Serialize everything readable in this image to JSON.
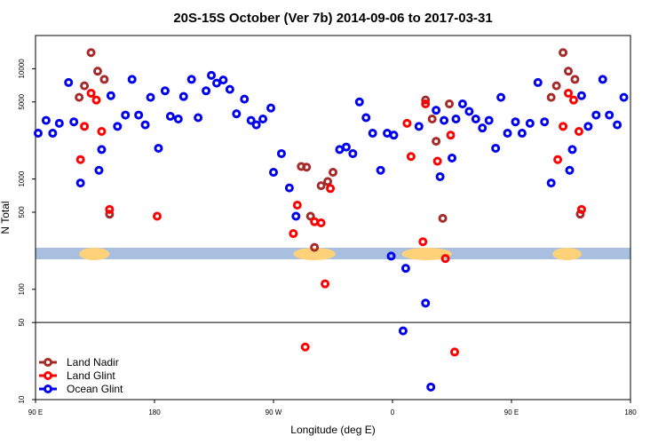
{
  "chart_data": {
    "type": "scatter",
    "title": "20S-15S October (Ver 7b)   2014-09-06 to 2017-03-31",
    "xlabel": "Longitude (deg E)",
    "ylabel": "N Total",
    "y_scale": "log",
    "xlim": [
      90,
      540
    ],
    "ylim": [
      10,
      20000
    ],
    "x_ticks": [
      {
        "value": 90,
        "label": "90 E"
      },
      {
        "value": 180,
        "label": "180"
      },
      {
        "value": 270,
        "label": "90 W"
      },
      {
        "value": 360,
        "label": "0"
      },
      {
        "value": 450,
        "label": "90 E"
      },
      {
        "value": 540,
        "label": "180"
      }
    ],
    "y_ticks": [
      {
        "value": 10,
        "label": "10"
      },
      {
        "value": 50,
        "label": "50"
      },
      {
        "value": 100,
        "label": "100"
      },
      {
        "value": 500,
        "label": "500"
      },
      {
        "value": 1000,
        "label": "1000"
      },
      {
        "value": 5000,
        "label": "5000"
      },
      {
        "value": 10000,
        "label": "10000"
      }
    ],
    "reference_line": {
      "y": 50
    },
    "legend_position": "bottom-left",
    "series": [
      {
        "name": "Land Nadir",
        "color": "#a52a2a",
        "points": [
          {
            "x": 123,
            "y": 5500
          },
          {
            "x": 127,
            "y": 7000
          },
          {
            "x": 132,
            "y": 14000
          },
          {
            "x": 137,
            "y": 9500
          },
          {
            "x": 142,
            "y": 8000
          },
          {
            "x": 146,
            "y": 480
          },
          {
            "x": 291,
            "y": 1300
          },
          {
            "x": 295,
            "y": 1280
          },
          {
            "x": 298,
            "y": 460
          },
          {
            "x": 301,
            "y": 240
          },
          {
            "x": 306,
            "y": 870
          },
          {
            "x": 311,
            "y": 950
          },
          {
            "x": 315,
            "y": 1150
          },
          {
            "x": 385,
            "y": 5200
          },
          {
            "x": 390,
            "y": 3500
          },
          {
            "x": 393,
            "y": 2200
          },
          {
            "x": 398,
            "y": 440
          },
          {
            "x": 403,
            "y": 4800
          },
          {
            "x": 480,
            "y": 5500
          },
          {
            "x": 484,
            "y": 7000
          },
          {
            "x": 489,
            "y": 14000
          },
          {
            "x": 493,
            "y": 9500
          },
          {
            "x": 498,
            "y": 8000
          },
          {
            "x": 502,
            "y": 480
          }
        ]
      },
      {
        "name": "Land Glint",
        "color": "#ff0000",
        "points": [
          {
            "x": 124,
            "y": 1500
          },
          {
            "x": 127,
            "y": 3000
          },
          {
            "x": 132,
            "y": 6000
          },
          {
            "x": 136,
            "y": 5200
          },
          {
            "x": 140,
            "y": 2700
          },
          {
            "x": 146,
            "y": 530
          },
          {
            "x": 182,
            "y": 460
          },
          {
            "x": 285,
            "y": 320
          },
          {
            "x": 288,
            "y": 580
          },
          {
            "x": 294,
            "y": 30
          },
          {
            "x": 301,
            "y": 410
          },
          {
            "x": 306,
            "y": 400
          },
          {
            "x": 309,
            "y": 112
          },
          {
            "x": 313,
            "y": 820
          },
          {
            "x": 371,
            "y": 3200
          },
          {
            "x": 374,
            "y": 1600
          },
          {
            "x": 383,
            "y": 270
          },
          {
            "x": 385,
            "y": 4800
          },
          {
            "x": 394,
            "y": 1450
          },
          {
            "x": 400,
            "y": 190
          },
          {
            "x": 404,
            "y": 2500
          },
          {
            "x": 407,
            "y": 27
          },
          {
            "x": 485,
            "y": 1500
          },
          {
            "x": 489,
            "y": 3000
          },
          {
            "x": 493,
            "y": 6000
          },
          {
            "x": 497,
            "y": 5200
          },
          {
            "x": 501,
            "y": 2700
          },
          {
            "x": 503,
            "y": 530
          }
        ]
      },
      {
        "name": "Ocean Glint",
        "color": "#0000ee",
        "points": [
          {
            "x": 92,
            "y": 2600
          },
          {
            "x": 98,
            "y": 3400
          },
          {
            "x": 103,
            "y": 2600
          },
          {
            "x": 108,
            "y": 3200
          },
          {
            "x": 115,
            "y": 7500
          },
          {
            "x": 119,
            "y": 3300
          },
          {
            "x": 124,
            "y": 920
          },
          {
            "x": 138,
            "y": 1200
          },
          {
            "x": 140,
            "y": 1850
          },
          {
            "x": 147,
            "y": 5700
          },
          {
            "x": 152,
            "y": 3000
          },
          {
            "x": 158,
            "y": 3800
          },
          {
            "x": 163,
            "y": 8000
          },
          {
            "x": 168,
            "y": 3800
          },
          {
            "x": 173,
            "y": 3100
          },
          {
            "x": 177,
            "y": 5500
          },
          {
            "x": 183,
            "y": 1900
          },
          {
            "x": 188,
            "y": 6300
          },
          {
            "x": 192,
            "y": 3700
          },
          {
            "x": 198,
            "y": 3500
          },
          {
            "x": 202,
            "y": 5600
          },
          {
            "x": 208,
            "y": 8000
          },
          {
            "x": 213,
            "y": 3600
          },
          {
            "x": 219,
            "y": 6300
          },
          {
            "x": 223,
            "y": 8700
          },
          {
            "x": 227,
            "y": 7400
          },
          {
            "x": 232,
            "y": 7900
          },
          {
            "x": 237,
            "y": 6500
          },
          {
            "x": 242,
            "y": 3900
          },
          {
            "x": 248,
            "y": 5300
          },
          {
            "x": 253,
            "y": 3400
          },
          {
            "x": 257,
            "y": 3100
          },
          {
            "x": 262,
            "y": 3500
          },
          {
            "x": 268,
            "y": 4400
          },
          {
            "x": 270,
            "y": 1150
          },
          {
            "x": 276,
            "y": 1700
          },
          {
            "x": 282,
            "y": 830
          },
          {
            "x": 287,
            "y": 460
          },
          {
            "x": 320,
            "y": 1850
          },
          {
            "x": 325,
            "y": 1950
          },
          {
            "x": 330,
            "y": 1700
          },
          {
            "x": 335,
            "y": 5000
          },
          {
            "x": 340,
            "y": 3600
          },
          {
            "x": 345,
            "y": 2600
          },
          {
            "x": 351,
            "y": 1200
          },
          {
            "x": 356,
            "y": 2600
          },
          {
            "x": 359,
            "y": 200
          },
          {
            "x": 361,
            "y": 2500
          },
          {
            "x": 368,
            "y": 42
          },
          {
            "x": 370,
            "y": 155
          },
          {
            "x": 380,
            "y": 3000
          },
          {
            "x": 385,
            "y": 75
          },
          {
            "x": 389,
            "y": 13
          },
          {
            "x": 393,
            "y": 4200
          },
          {
            "x": 396,
            "y": 1050
          },
          {
            "x": 399,
            "y": 3400
          },
          {
            "x": 405,
            "y": 1550
          },
          {
            "x": 408,
            "y": 3500
          },
          {
            "x": 413,
            "y": 4800
          },
          {
            "x": 418,
            "y": 4100
          },
          {
            "x": 423,
            "y": 3500
          },
          {
            "x": 428,
            "y": 2900
          },
          {
            "x": 433,
            "y": 3400
          },
          {
            "x": 438,
            "y": 1900
          },
          {
            "x": 442,
            "y": 5500
          },
          {
            "x": 447,
            "y": 2600
          },
          {
            "x": 453,
            "y": 3300
          },
          {
            "x": 458,
            "y": 2600
          },
          {
            "x": 464,
            "y": 3200
          },
          {
            "x": 470,
            "y": 7500
          },
          {
            "x": 475,
            "y": 3300
          },
          {
            "x": 480,
            "y": 920
          },
          {
            "x": 494,
            "y": 1200
          },
          {
            "x": 496,
            "y": 1850
          },
          {
            "x": 503,
            "y": 5700
          },
          {
            "x": 508,
            "y": 3000
          },
          {
            "x": 514,
            "y": 3800
          },
          {
            "x": 519,
            "y": 8000
          },
          {
            "x": 524,
            "y": 3800
          },
          {
            "x": 530,
            "y": 3100
          },
          {
            "x": 535,
            "y": 5500
          }
        ]
      }
    ]
  }
}
